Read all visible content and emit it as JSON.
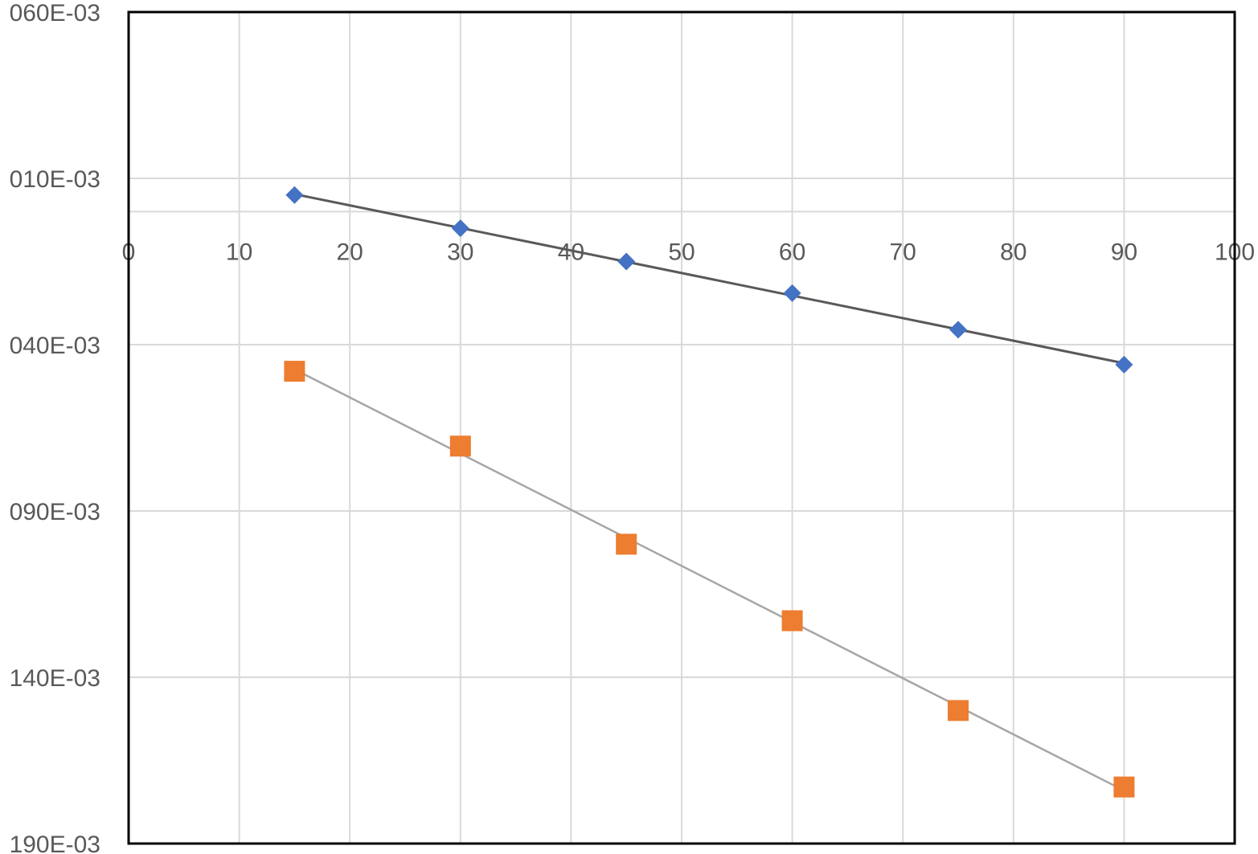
{
  "chart_data": {
    "type": "scatter",
    "xlim": [
      0,
      100
    ],
    "x_ticks": [
      0,
      10,
      20,
      30,
      40,
      50,
      60,
      70,
      80,
      90,
      100
    ],
    "x_tick_labels": [
      "0",
      "10",
      "20",
      "30",
      "40",
      "50",
      "60",
      "70",
      "80",
      "90",
      "100"
    ],
    "ylim": [
      -0.19,
      0.06
    ],
    "y_ticks": [
      0.06,
      0.01,
      -0.04,
      -0.09,
      -0.14,
      -0.19
    ],
    "y_tick_labels": [
      "060E-03",
      "010E-03",
      "040E-03",
      "090E-03",
      "140E-03",
      "190E-03"
    ],
    "grid": true,
    "legend": "none",
    "series": [
      {
        "marker": "diamond",
        "color": "#4472c4",
        "trendline_color": "#595959",
        "x": [
          15,
          30,
          45,
          60,
          75,
          90
        ],
        "y": [
          0.005,
          -0.005,
          -0.015,
          -0.0245,
          -0.0355,
          -0.046
        ]
      },
      {
        "marker": "square",
        "color": "#ed7d31",
        "trendline_color": "#a6a6a6",
        "x": [
          15,
          30,
          45,
          60,
          75,
          90
        ],
        "y": [
          -0.048,
          -0.0705,
          -0.1,
          -0.123,
          -0.15,
          -0.173
        ]
      }
    ]
  }
}
